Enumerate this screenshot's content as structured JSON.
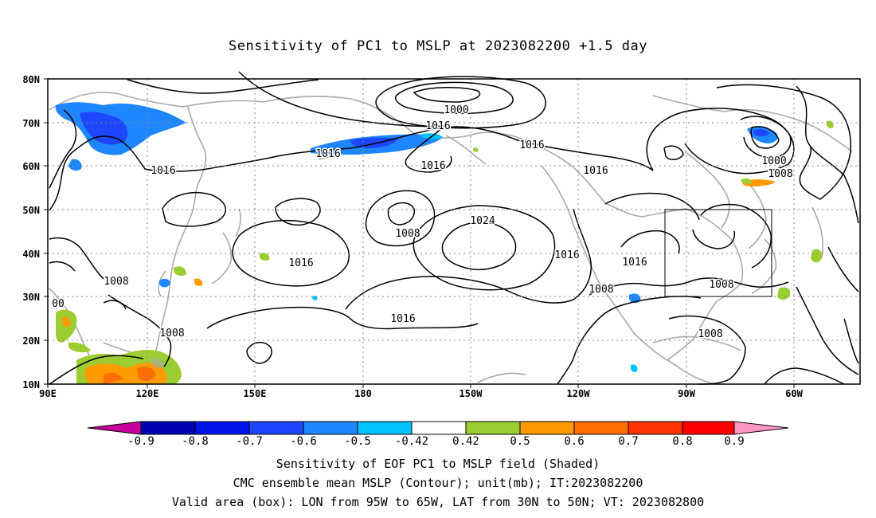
{
  "title": "Sensitivity of PC1 to MSLP at 2023082200 +1.5 day",
  "map": {
    "lat_labels": [
      "80N",
      "70N",
      "60N",
      "50N",
      "40N",
      "30N",
      "20N",
      "10N"
    ],
    "lon_labels": [
      "90E",
      "120E",
      "150E",
      "180",
      "150W",
      "120W",
      "90W",
      "60W"
    ],
    "contour_labels": [
      "1000",
      "1016",
      "1016",
      "1016",
      "1016",
      "1016",
      "1008",
      "1016",
      "1000",
      "1008",
      "1008",
      "1024",
      "1016",
      "1016",
      "1008",
      "1016",
      "1016",
      "1008",
      "1008",
      "1008",
      "00"
    ],
    "valid_box": {
      "lon_from": "95W",
      "lon_to": "65W",
      "lat_from": "30N",
      "lat_to": "50N"
    }
  },
  "colorbar": {
    "labels": [
      "-0.9",
      "-0.8",
      "-0.7",
      "-0.6",
      "-0.5",
      "-0.42",
      "0.42",
      "0.5",
      "0.6",
      "0.7",
      "0.8",
      "0.9"
    ],
    "colors": [
      "#c8009b",
      "#0000b4",
      "#0014ea",
      "#1e46ff",
      "#1e87ff",
      "#00c3ff",
      "#ffffff",
      "#9bcd32",
      "#ff9b00",
      "#ff6e00",
      "#ff3200",
      "#ff0000",
      "#ff96c8"
    ]
  },
  "caption": {
    "line1": "Sensitivity of EOF PC1 to MSLP field (Shaded)",
    "line2": "CMC ensemble mean MSLP (Contour); unit(mb); IT:2023082200",
    "line3": "Valid area (box): LON from 95W to 65W, LAT from 30N to 50N; VT: 2023082800"
  }
}
